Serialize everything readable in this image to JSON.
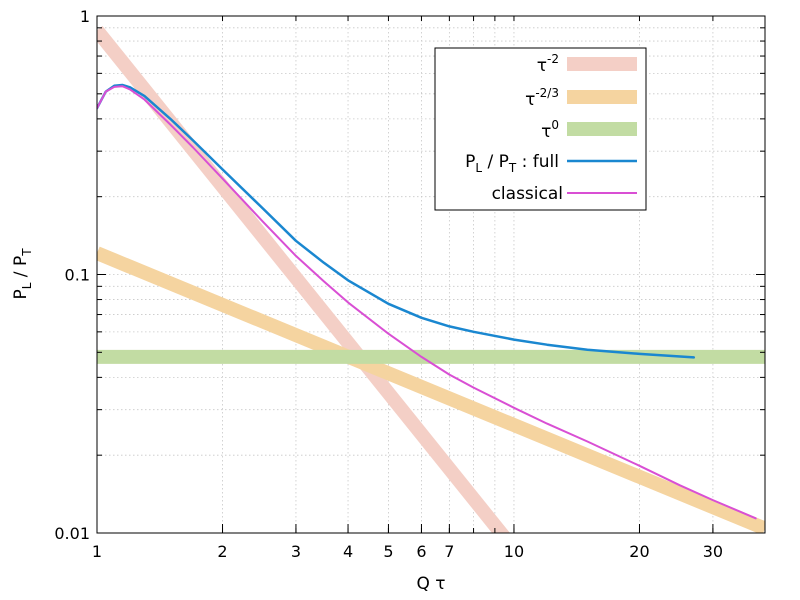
{
  "chart_data": {
    "type": "line",
    "xscale": "log",
    "yscale": "log",
    "xlim": [
      1,
      40
    ],
    "ylim": [
      0.01,
      1
    ],
    "grid": true,
    "legend_position": "top-right",
    "xlabel": "Q τ",
    "ylabel": {
      "base": "P",
      "sub1": "L",
      "mid": " / P",
      "sub2": "T"
    },
    "xticks": [
      {
        "value": 1,
        "label": "1"
      },
      {
        "value": 2,
        "label": "2"
      },
      {
        "value": 3,
        "label": "3"
      },
      {
        "value": 4,
        "label": "4"
      },
      {
        "value": 5,
        "label": "5"
      },
      {
        "value": 6,
        "label": "6"
      },
      {
        "value": 7,
        "label": "7"
      },
      {
        "value": 10,
        "label": "10"
      },
      {
        "value": 20,
        "label": "20"
      },
      {
        "value": 30,
        "label": "30"
      }
    ],
    "yticks": [
      {
        "value": 0.01,
        "label": "0.01"
      },
      {
        "value": 0.1,
        "label": "0.1"
      },
      {
        "value": 1,
        "label": "1"
      }
    ],
    "series": [
      {
        "key": "tau_m2",
        "legend": {
          "base": "τ",
          "sup": "-2"
        },
        "color": "#f4cfc6",
        "style": "band",
        "x": [
          1,
          9.5
        ],
        "y": [
          0.88,
          0.0096
        ]
      },
      {
        "key": "tau_m23",
        "legend": {
          "base": "τ",
          "sup": "-2/3"
        },
        "color": "#f5d4a0",
        "style": "band",
        "x": [
          1,
          40
        ],
        "y": [
          0.121,
          0.0104
        ]
      },
      {
        "key": "tau_0",
        "legend": {
          "base": "τ",
          "sup": "0"
        },
        "color": "#c2dca3",
        "style": "band",
        "x": [
          1,
          40
        ],
        "y": [
          0.048,
          0.048
        ]
      },
      {
        "key": "full",
        "legend": {
          "base": "P",
          "sub1": "L",
          "mid": " / P",
          "sub2": "T",
          "tail": " :  full"
        },
        "color": "#1a87d0",
        "style": "line",
        "x": [
          1.0,
          1.05,
          1.1,
          1.15,
          1.2,
          1.3,
          1.5,
          1.7,
          2.0,
          2.5,
          3.0,
          3.5,
          4.0,
          5.0,
          6.0,
          7.0,
          8.0,
          10.0,
          12.0,
          15.0,
          20.0,
          27.0
        ],
        "y": [
          0.44,
          0.51,
          0.537,
          0.541,
          0.53,
          0.49,
          0.4,
          0.33,
          0.255,
          0.18,
          0.135,
          0.111,
          0.095,
          0.077,
          0.068,
          0.063,
          0.06,
          0.056,
          0.0535,
          0.0512,
          0.0493,
          0.0478
        ]
      },
      {
        "key": "classical",
        "legend": {
          "base": "",
          "tail": "classical"
        },
        "color": "#d94fd4",
        "style": "line",
        "x": [
          1.0,
          1.05,
          1.1,
          1.15,
          1.2,
          1.3,
          1.5,
          1.7,
          2.0,
          2.5,
          3.0,
          3.5,
          4.0,
          5.0,
          6.0,
          7.0,
          8.0,
          10.0,
          12.0,
          15.0,
          20.0,
          25.0,
          30.0,
          38.0
        ],
        "y": [
          0.44,
          0.51,
          0.532,
          0.535,
          0.52,
          0.475,
          0.38,
          0.31,
          0.235,
          0.16,
          0.118,
          0.094,
          0.078,
          0.059,
          0.048,
          0.041,
          0.0365,
          0.0305,
          0.0265,
          0.0226,
          0.0182,
          0.0153,
          0.0134,
          0.0114
        ]
      }
    ]
  }
}
